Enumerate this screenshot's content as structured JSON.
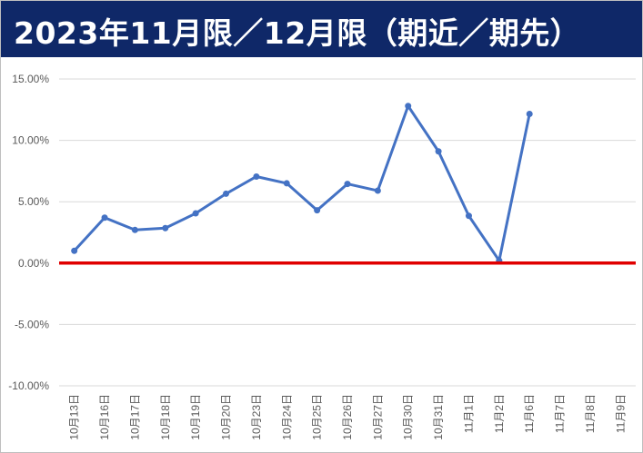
{
  "header": {
    "title": "2023年11月限／12月限（期近／期先）"
  },
  "colors": {
    "header_bg": "#0f2868",
    "series_line": "#4472c4",
    "zero_line": "#e00000",
    "grid": "#d9d9d9"
  },
  "chart_data": {
    "type": "line",
    "title": "",
    "xlabel": "",
    "ylabel": "",
    "ylim": [
      -10,
      15
    ],
    "yticks": [
      15,
      10,
      5,
      0,
      -5,
      -10
    ],
    "ytick_labels": [
      "15.00%",
      "10.00%",
      "5.00%",
      "0.00%",
      "-5.00%",
      "-10.00%"
    ],
    "grid": true,
    "categories": [
      "10月13日",
      "10月16日",
      "10月17日",
      "10月18日",
      "10月19日",
      "10月20日",
      "10月23日",
      "10月24日",
      "10月25日",
      "10月26日",
      "10月27日",
      "10月30日",
      "10月31日",
      "11月1日",
      "11月2日",
      "11月6日",
      "11月7日",
      "11月8日",
      "11月9日"
    ],
    "series": [
      {
        "values": [
          1.0,
          3.7,
          2.7,
          2.85,
          4.05,
          5.65,
          7.05,
          6.5,
          4.3,
          6.45,
          5.9,
          12.8,
          9.1,
          3.85,
          0.2,
          12.15,
          null,
          null,
          null
        ]
      }
    ],
    "reference_line": {
      "y": 0
    }
  }
}
